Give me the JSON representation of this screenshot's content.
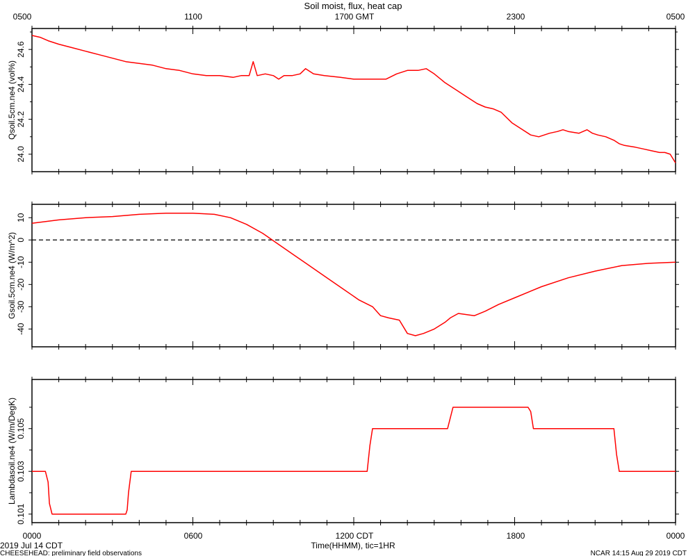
{
  "header": {
    "title": "Soil moist, flux, heat cap",
    "top_ticks": [
      "0500",
      "1100",
      "1700 GMT",
      "2300",
      "0500"
    ]
  },
  "footer": {
    "bottom_ticks": [
      "0000",
      "0600",
      "1200 CDT",
      "1800",
      "0000"
    ],
    "xlabel": "Time(HHMM), tic=1HR",
    "date": "2019 Jul 14 CDT",
    "project": "CHEESEHEAD: preliminary field observations",
    "credit": "NCAR 14:15 Aug 29 2019 CDT"
  },
  "chart_data": [
    {
      "type": "line",
      "ylabel": "Qsoil.5cm.ne4 (vol%)",
      "ylim": [
        23.9,
        24.72
      ],
      "yticks": [
        24.0,
        24.2,
        24.4,
        24.6
      ],
      "ytick_labels": [
        "24.0",
        "24.2",
        "24.4",
        "24.6"
      ],
      "xlim": [
        0,
        24
      ],
      "series": [
        {
          "color": "#ff0000",
          "x": [
            0,
            0.3,
            0.6,
            1,
            1.5,
            2,
            2.5,
            3,
            3.5,
            4,
            4.5,
            5,
            5.5,
            6,
            6.5,
            7,
            7.5,
            7.8,
            8.1,
            8.25,
            8.4,
            8.7,
            9.0,
            9.2,
            9.4,
            9.7,
            10.0,
            10.2,
            10.5,
            10.9,
            11.5,
            12.0,
            12.4,
            12.8,
            13.2,
            13.6,
            14.0,
            14.4,
            14.7,
            15.0,
            15.4,
            15.8,
            16.2,
            16.6,
            16.9,
            17.2,
            17.5,
            17.9,
            18.2,
            18.6,
            18.9,
            19.3,
            19.6,
            19.8,
            20.0,
            20.4,
            20.7,
            20.9,
            21.1,
            21.4,
            21.7,
            21.9,
            22.1,
            22.5,
            22.8,
            23.1,
            23.4,
            23.6,
            23.8,
            24.0
          ],
          "y": [
            24.68,
            24.67,
            24.65,
            24.63,
            24.61,
            24.59,
            24.57,
            24.55,
            24.53,
            24.52,
            24.51,
            24.49,
            24.48,
            24.46,
            24.45,
            24.45,
            24.44,
            24.45,
            24.45,
            24.53,
            24.45,
            24.46,
            24.45,
            24.43,
            24.45,
            24.45,
            24.46,
            24.49,
            24.46,
            24.45,
            24.44,
            24.43,
            24.43,
            24.43,
            24.43,
            24.46,
            24.48,
            24.48,
            24.49,
            24.46,
            24.41,
            24.37,
            24.33,
            24.29,
            24.27,
            24.26,
            24.24,
            24.18,
            24.15,
            24.11,
            24.1,
            24.12,
            24.13,
            24.14,
            24.13,
            24.12,
            24.14,
            24.12,
            24.11,
            24.1,
            24.08,
            24.06,
            24.05,
            24.04,
            24.03,
            24.02,
            24.01,
            24.01,
            24.0,
            23.95
          ]
        }
      ]
    },
    {
      "type": "line",
      "ylabel": "Gsoil.5cm.ne4 (W/m^2)",
      "ylim": [
        -48,
        16
      ],
      "yticks": [
        10,
        0,
        -10,
        -20,
        -30,
        -40
      ],
      "ytick_labels": [
        "10",
        "0",
        "-10",
        "-20",
        "-30",
        "-40"
      ],
      "zero_line": true,
      "xlim": [
        0,
        24
      ],
      "series": [
        {
          "color": "#ff0000",
          "x": [
            0,
            1,
            2,
            3,
            4,
            5,
            6,
            6.8,
            7.4,
            8,
            8.6,
            9.2,
            9.8,
            10.4,
            11,
            11.6,
            12.2,
            12.7,
            13.0,
            13.3,
            13.5,
            13.7,
            14.0,
            14.3,
            14.6,
            15.0,
            15.4,
            15.6,
            15.9,
            16.2,
            16.5,
            16.9,
            17.4,
            18.0,
            19.0,
            20.0,
            21.0,
            22.0,
            23.0,
            24.0
          ],
          "y": [
            7.5,
            9,
            10,
            10.5,
            11.5,
            12,
            12,
            11.5,
            10,
            7,
            3,
            -2,
            -7,
            -12,
            -17,
            -22,
            -27,
            -30,
            -34,
            -35,
            -35.5,
            -36,
            -42,
            -43,
            -42,
            -40,
            -37,
            -35,
            -33,
            -33.5,
            -34,
            -32,
            -29,
            -26,
            -21,
            -17,
            -14,
            -11.5,
            -10.5,
            -10
          ]
        }
      ]
    },
    {
      "type": "line",
      "ylabel": "Lambdasoil.ne4 (W/m/DegK)",
      "ylim": [
        0.1006,
        0.1073
      ],
      "yticks": [
        0.101,
        0.103,
        0.105
      ],
      "ytick_labels": [
        "0.101",
        "0.103",
        "0.105"
      ],
      "xlim": [
        0,
        24
      ],
      "series": [
        {
          "color": "#ff0000",
          "x": [
            0,
            0.5,
            0.6,
            0.65,
            0.75,
            3.5,
            3.55,
            3.6,
            3.7,
            12.5,
            12.6,
            12.7,
            12.8,
            15.5,
            15.6,
            15.7,
            15.8,
            18.5,
            18.6,
            18.7,
            18.8,
            21.7,
            21.8,
            21.9,
            24
          ],
          "y": [
            0.103,
            0.103,
            0.1025,
            0.1015,
            0.101,
            0.101,
            0.1012,
            0.102,
            0.103,
            0.103,
            0.1042,
            0.105,
            0.105,
            0.105,
            0.1055,
            0.106,
            0.106,
            0.106,
            0.1058,
            0.105,
            0.105,
            0.105,
            0.1038,
            0.103,
            0.103
          ]
        }
      ]
    }
  ]
}
